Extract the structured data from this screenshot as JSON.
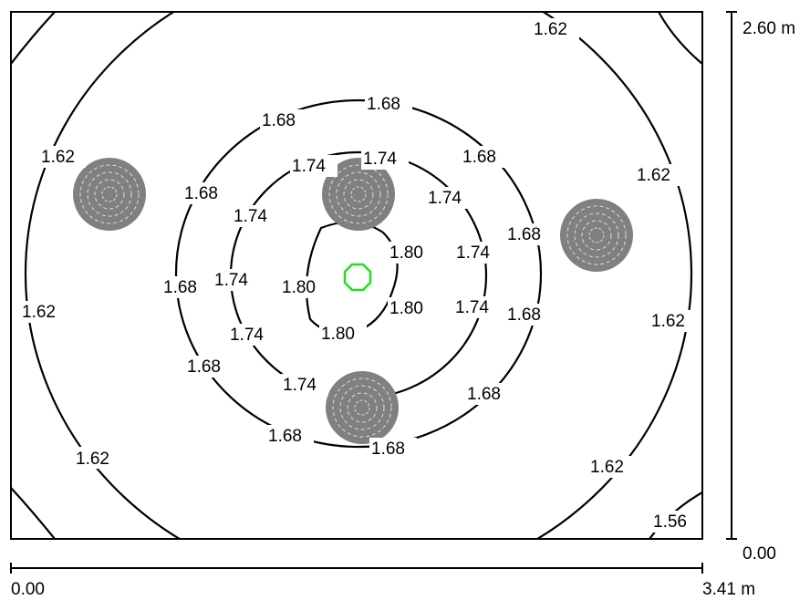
{
  "room": {
    "width_label": "3.41 m",
    "height_label": "2.60 m",
    "x_origin_label": "0.00",
    "y_origin_label": "0.00"
  },
  "contour_labels": {
    "l1": "1.62",
    "l2": "1.62",
    "l3": "1.62",
    "l4": "1.62",
    "l5": "1.62",
    "l6": "1.62",
    "l7": "1.62",
    "m1": "1.68",
    "m2": "1.68",
    "m3": "1.68",
    "m4": "1.68",
    "m5": "1.68",
    "m6": "1.68",
    "m7": "1.68",
    "m8": "1.68",
    "m9": "1.68",
    "m10": "1.68",
    "m11": "1.68",
    "n1": "1.74",
    "n2": "1.74",
    "n3": "1.74",
    "n4": "1.74",
    "n5": "1.74",
    "n6": "1.74",
    "n7": "1.74",
    "n8": "1.74",
    "n9": "1.74",
    "p1": "1.80",
    "p2": "1.80",
    "p3": "1.80",
    "p4": "1.80",
    "c1": "1.56"
  },
  "colors": {
    "luminaire": "#808080",
    "marker": "#22dd22"
  }
}
